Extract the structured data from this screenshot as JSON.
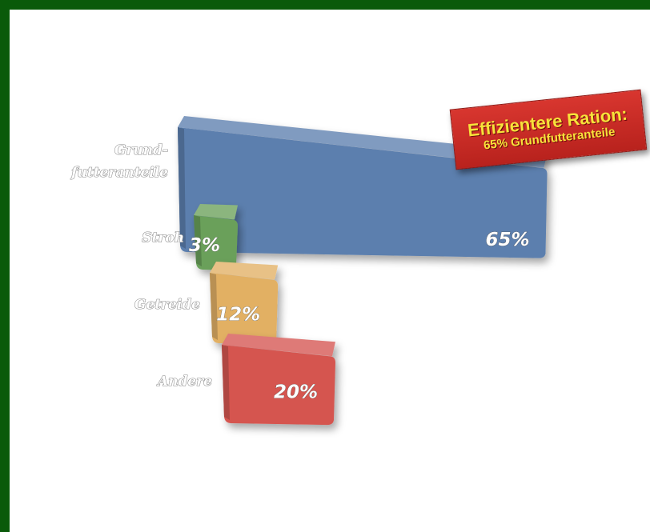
{
  "chart_data": {
    "type": "bar",
    "orientation": "horizontal",
    "style": "3d",
    "categories": [
      [
        "Grund-",
        "futteranteile"
      ],
      [
        "Stroh"
      ],
      [
        "Getreide"
      ],
      [
        "Andere"
      ]
    ],
    "values": [
      65,
      3,
      12,
      20
    ],
    "value_labels": [
      "65%",
      "3%",
      "12%",
      "20%"
    ],
    "unit": "%",
    "colors": [
      "#5c7fae",
      "#6aa05a",
      "#e2b064",
      "#d55550"
    ],
    "annotation": {
      "title": "Effizientere Ration:",
      "subtitle": "65% Grundfutteranteile"
    }
  },
  "colors": {
    "border": "#0a5a0a",
    "background": "#ffffff",
    "callout": "#c82b25",
    "callout_text": "#f7e23a"
  }
}
